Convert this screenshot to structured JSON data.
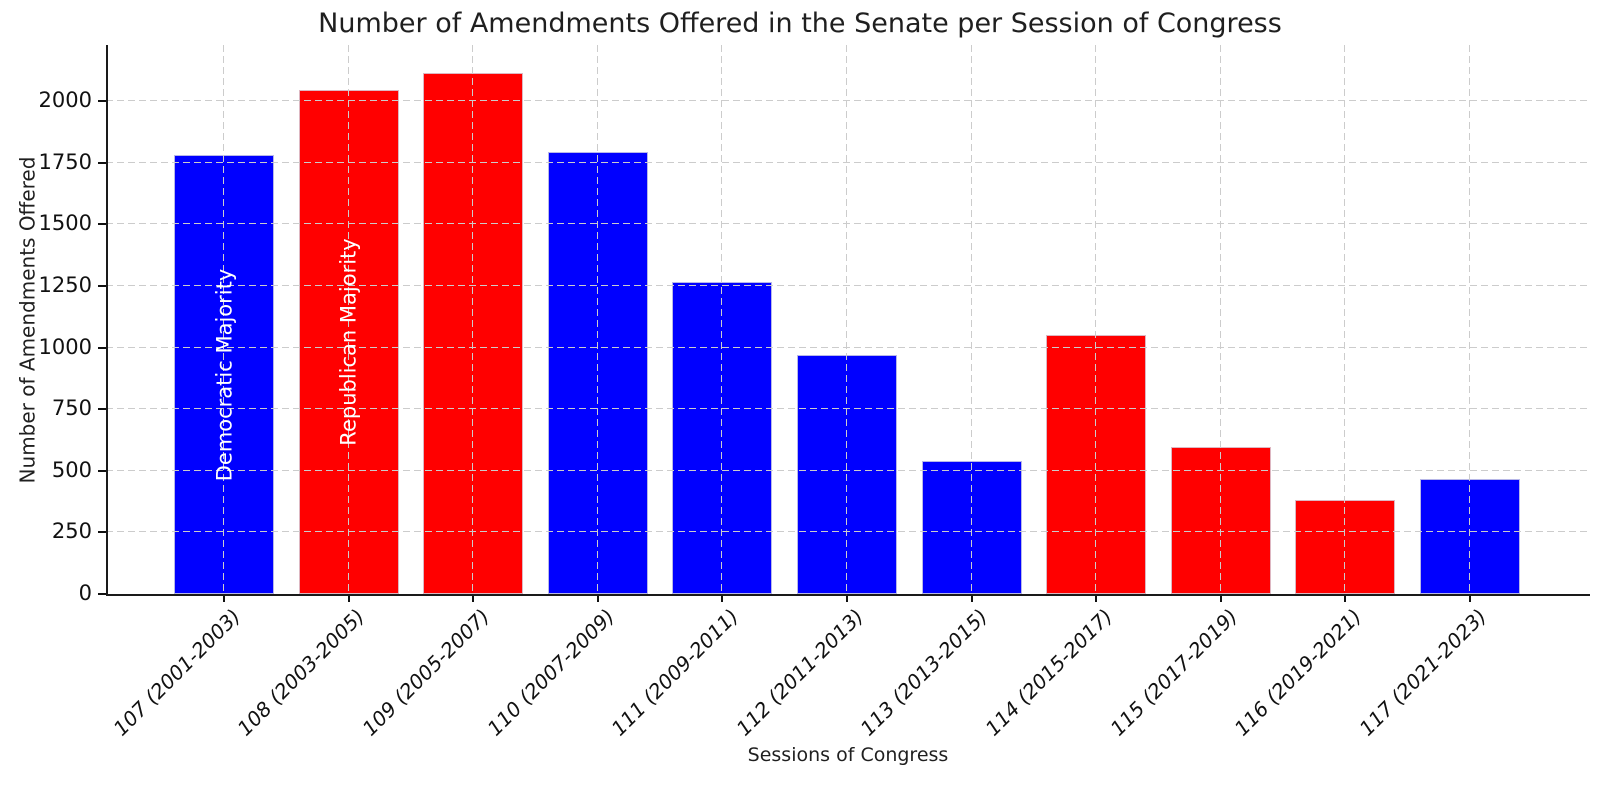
{
  "chart_data": {
    "type": "bar",
    "title": "Number of Amendments Offered in the Senate per Session of Congress",
    "xlabel": "Sessions of Congress",
    "ylabel": "Number of Amendments Offered",
    "categories": [
      "107 (2001-2003)",
      "108 (2003-2005)",
      "109 (2005-2007)",
      "110 (2007-2009)",
      "111 (2009-2011)",
      "112 (2011-2013)",
      "113 (2013-2015)",
      "114 (2015-2017)",
      "115 (2017-2019)",
      "116 (2019-2021)",
      "117 (2021-2023)"
    ],
    "values": [
      1780,
      2045,
      2115,
      1795,
      1265,
      970,
      540,
      1050,
      595,
      380,
      465
    ],
    "majority": [
      "democratic",
      "republican",
      "republican",
      "democratic",
      "democratic",
      "democratic",
      "democratic",
      "republican",
      "republican",
      "republican",
      "democratic"
    ],
    "y_ticks": [
      0,
      250,
      500,
      750,
      1000,
      1250,
      1500,
      1750,
      2000
    ],
    "ylim": [
      0,
      2228
    ],
    "grid": "dashed, drawn above bars",
    "legend_position": "none",
    "annotations": [
      {
        "text": "Democratic Majority",
        "bar_index": 0
      },
      {
        "text": "Republican Majority",
        "bar_index": 1
      }
    ],
    "colors": {
      "democratic": "#0000ff",
      "republican": "#ff0000",
      "annotation_text": "#ffffff",
      "grid": "#cccccc",
      "axis": "#1a1a1a",
      "text": "#1f1f1f"
    }
  }
}
